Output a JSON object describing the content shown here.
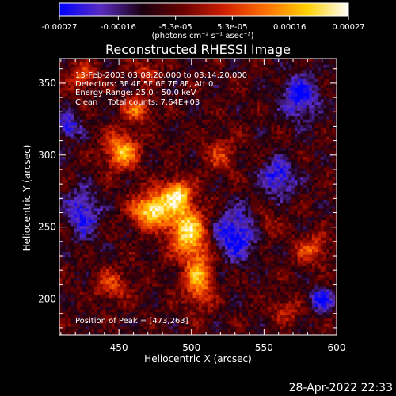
{
  "chart_data": {
    "type": "heatmap",
    "title": "Reconstructed RHESSI Image",
    "xlabel": "Heliocentric X (arcsec)",
    "ylabel": "Heliocentric Y (arcsec)",
    "xlim": [
      409,
      600
    ],
    "ylim": [
      175,
      367
    ],
    "xticks": [
      450,
      500,
      550,
      600
    ],
    "yticks": [
      200,
      250,
      300,
      350
    ],
    "colorbar": {
      "range": [
        -0.00027,
        0.00027
      ],
      "tick_values": [
        -0.00027,
        -0.00016,
        -5.3e-05,
        5.3e-05,
        0.00016,
        0.00027
      ],
      "tick_labels": [
        "-0.00027",
        "-0.00016",
        "-5.3e-05",
        "5.3e-05",
        "0.00016",
        "0.00027"
      ],
      "unit_label": "(photons cm⁻² s⁻¹ asec⁻²)",
      "colors": [
        "#0000ff",
        "#5a2cc0",
        "#1a0010",
        "#6a0000",
        "#d02000",
        "#ff7000",
        "#ffd000",
        "#ffffff"
      ]
    },
    "annotations": [
      "13-Feb-2003 03:08:20.000 to 03:14:20.000",
      "Detectors: 3F 4F 5F 6F 7F 8F, Att 0",
      "Energy Range: 25.0 - 50.0 keV",
      "Clean    Total counts: 7.64E+03",
      "Position of Peak = [473,263]"
    ],
    "peak": [
      473,
      263
    ],
    "sources": [
      {
        "x": 473,
        "y": 262,
        "amp": 1.0,
        "sx": 9,
        "sy": 8
      },
      {
        "x": 490,
        "y": 273,
        "amp": 0.85,
        "sx": 7,
        "sy": 7
      },
      {
        "x": 497,
        "y": 248,
        "amp": 0.9,
        "sx": 9,
        "sy": 12
      },
      {
        "x": 452,
        "y": 303,
        "amp": 0.75,
        "sx": 8,
        "sy": 9
      },
      {
        "x": 463,
        "y": 332,
        "amp": 0.55,
        "sx": 7,
        "sy": 6
      },
      {
        "x": 505,
        "y": 215,
        "amp": 0.7,
        "sx": 7,
        "sy": 14
      },
      {
        "x": 520,
        "y": 300,
        "amp": 0.35,
        "sx": 8,
        "sy": 8
      },
      {
        "x": 425,
        "y": 355,
        "amp": 0.45,
        "sx": 7,
        "sy": 7
      },
      {
        "x": 470,
        "y": 358,
        "amp": 0.4,
        "sx": 6,
        "sy": 5
      },
      {
        "x": 445,
        "y": 210,
        "amp": 0.4,
        "sx": 8,
        "sy": 8
      },
      {
        "x": 583,
        "y": 235,
        "amp": 0.45,
        "sx": 8,
        "sy": 7
      },
      {
        "x": 552,
        "y": 252,
        "amp": 0.3,
        "sx": 6,
        "sy": 6
      },
      {
        "x": 565,
        "y": 192,
        "amp": 0.3,
        "sx": 7,
        "sy": 6
      }
    ],
    "negatives": [
      {
        "x": 530,
        "y": 245,
        "amp": 0.6,
        "sx": 10,
        "sy": 12
      },
      {
        "x": 575,
        "y": 340,
        "amp": 0.55,
        "sx": 9,
        "sy": 11
      },
      {
        "x": 425,
        "y": 260,
        "amp": 0.5,
        "sx": 8,
        "sy": 12
      },
      {
        "x": 560,
        "y": 285,
        "amp": 0.55,
        "sx": 8,
        "sy": 9
      },
      {
        "x": 415,
        "y": 320,
        "amp": 0.5,
        "sx": 6,
        "sy": 6
      },
      {
        "x": 590,
        "y": 200,
        "amp": 0.55,
        "sx": 6,
        "sy": 6
      }
    ]
  },
  "footer": {
    "timestamp": "28-Apr-2022 22:33"
  }
}
